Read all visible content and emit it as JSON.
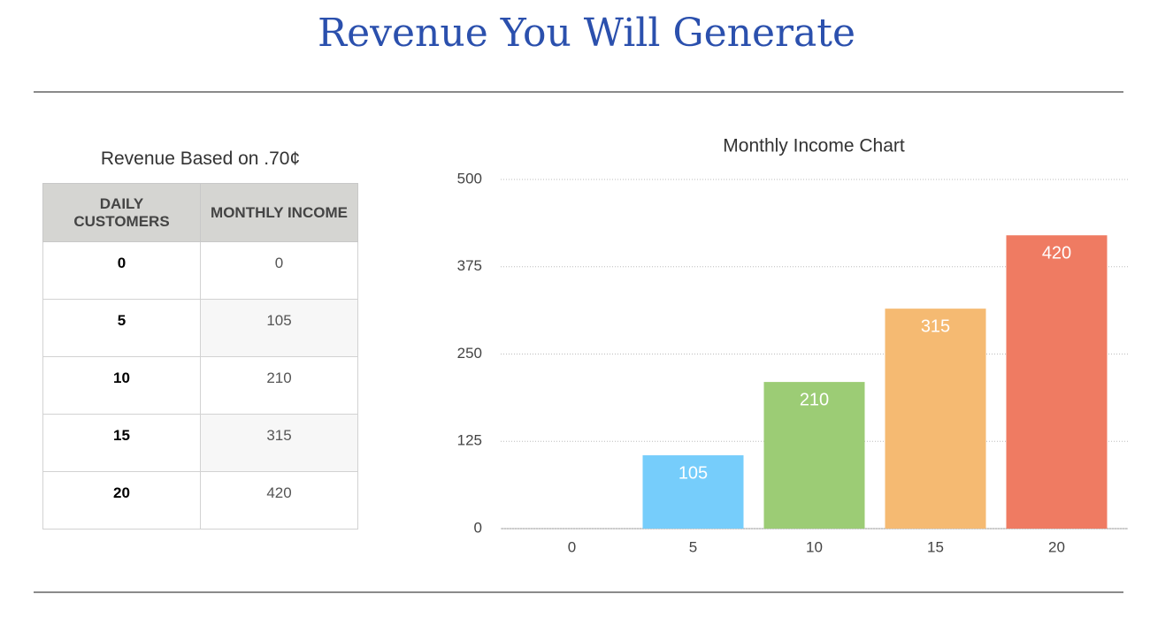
{
  "title": "Revenue You Will Generate",
  "table": {
    "caption": "Revenue Based on .70¢",
    "header": [
      "DAILY CUSTOMERS",
      "MONTHLY INCOME"
    ],
    "rows": [
      [
        "0",
        "0"
      ],
      [
        "5",
        "105"
      ],
      [
        "10",
        "210"
      ],
      [
        "15",
        "315"
      ],
      [
        "20",
        "420"
      ]
    ]
  },
  "chart_data": {
    "type": "bar",
    "title": "Monthly Income Chart",
    "categories": [
      "0",
      "5",
      "10",
      "15",
      "20"
    ],
    "values": [
      0,
      105,
      210,
      315,
      420
    ],
    "colors": [
      "#d1d1d6",
      "#76cdfb",
      "#9ccc75",
      "#f5ba72",
      "#ef7b62"
    ],
    "ylim": [
      0,
      500
    ],
    "yticks": [
      0,
      125,
      250,
      375,
      500
    ],
    "grid": true
  }
}
